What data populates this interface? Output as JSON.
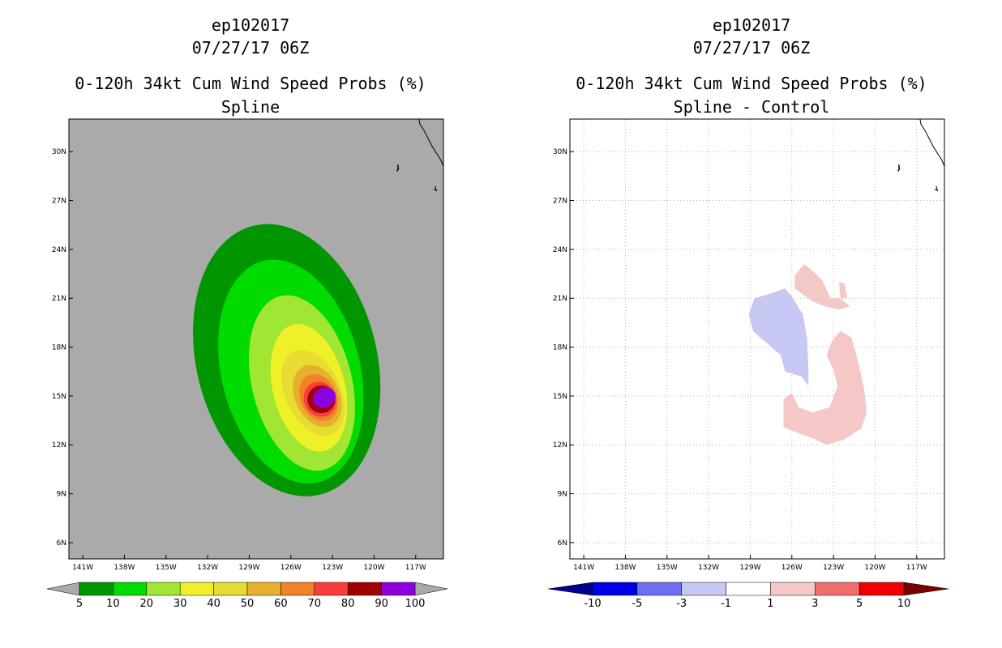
{
  "chart_data": [
    {
      "type": "heatmap",
      "storm_id": "ep102017",
      "datetime": "07/27/17 06Z",
      "title": "0-120h 34kt Cum Wind Speed Probs (%)",
      "subtitle": "Spline",
      "x_ticks": [
        "141W",
        "138W",
        "135W",
        "132W",
        "129W",
        "126W",
        "123W",
        "120W",
        "117W"
      ],
      "y_ticks": [
        "30N",
        "27N",
        "24N",
        "21N",
        "18N",
        "15N",
        "12N",
        "9N",
        "6N"
      ],
      "xlim": [
        -142,
        -115
      ],
      "ylim": [
        5,
        32
      ],
      "background_color": "#aaaaaa",
      "colorbar": {
        "labels": [
          "5",
          "10",
          "20",
          "30",
          "40",
          "50",
          "60",
          "70",
          "80",
          "90",
          "100"
        ],
        "colors": [
          "#009600",
          "#00dc00",
          "#a0e632",
          "#f0f028",
          "#e6dc32",
          "#e6af2d",
          "#f08228",
          "#fa3c3c",
          "#a00000",
          "#8c00dc"
        ],
        "extend_colors": [
          "#aaaaaa",
          "#aaaaaa"
        ]
      },
      "contours": [
        {
          "level": 5,
          "center": [
            -126.3,
            17.2
          ],
          "radius_deg": [
            6.5,
            8.5
          ],
          "color": "#009600"
        },
        {
          "level": 10,
          "center": [
            -126.0,
            16.5
          ],
          "radius_deg": [
            5.0,
            7.0
          ],
          "color": "#00dc00"
        },
        {
          "level": 20,
          "center": [
            -125.2,
            15.8
          ],
          "radius_deg": [
            3.6,
            5.5
          ],
          "color": "#a0e632"
        },
        {
          "level": 30,
          "center": [
            -124.7,
            15.5
          ],
          "radius_deg": [
            2.6,
            4.0
          ],
          "color": "#f0f028"
        },
        {
          "level": 40,
          "center": [
            -124.4,
            15.2
          ],
          "radius_deg": [
            2.0,
            2.8
          ],
          "color": "#e6dc32"
        },
        {
          "level": 50,
          "center": [
            -124.1,
            15.0
          ],
          "radius_deg": [
            1.6,
            2.0
          ],
          "color": "#e6af2d"
        },
        {
          "level": 60,
          "center": [
            -124.0,
            14.9
          ],
          "radius_deg": [
            1.3,
            1.5
          ],
          "color": "#f08228"
        },
        {
          "level": 70,
          "center": [
            -123.9,
            14.8
          ],
          "radius_deg": [
            1.15,
            1.1
          ],
          "color": "#fa3c3c"
        },
        {
          "level": 80,
          "center": [
            -123.8,
            14.8
          ],
          "radius_deg": [
            1.0,
            0.85
          ],
          "color": "#a00000"
        },
        {
          "level": 90,
          "center": [
            -123.6,
            14.9
          ],
          "radius_deg": [
            0.85,
            0.6
          ],
          "color": "#8c00dc"
        }
      ]
    },
    {
      "type": "heatmap",
      "storm_id": "ep102017",
      "datetime": "07/27/17 06Z",
      "title": "0-120h 34kt Cum Wind Speed Probs (%)",
      "subtitle": "Spline - Control",
      "x_ticks": [
        "141W",
        "138W",
        "135W",
        "132W",
        "129W",
        "126W",
        "123W",
        "120W",
        "117W"
      ],
      "y_ticks": [
        "30N",
        "27N",
        "24N",
        "21N",
        "18N",
        "15N",
        "12N",
        "9N",
        "6N"
      ],
      "xlim": [
        -142,
        -115
      ],
      "ylim": [
        5,
        32
      ],
      "background_color": "#ffffff",
      "grid": true,
      "colorbar": {
        "labels": [
          "-10",
          "-5",
          "-3",
          "-1",
          "1",
          "3",
          "5",
          "10"
        ],
        "colors": [
          "#0000e6",
          "#6e6ef0",
          "#c8c8f5",
          "#ffffff",
          "#f5c8c8",
          "#f06e6e",
          "#f00000"
        ],
        "extend_colors": [
          "#00008c",
          "#780000"
        ]
      },
      "regions": [
        {
          "level_range": [
            -3,
            -1
          ],
          "color": "#c8c8f5",
          "points": [
            [
              -129.1,
              20.0
            ],
            [
              -128.7,
              21.0
            ],
            [
              -127.5,
              21.3
            ],
            [
              -126.5,
              21.6
            ],
            [
              -126.0,
              21.1
            ],
            [
              -125.2,
              20.0
            ],
            [
              -124.9,
              18.5
            ],
            [
              -124.8,
              16.5
            ],
            [
              -124.8,
              15.6
            ],
            [
              -125.3,
              16.2
            ],
            [
              -126.5,
              16.5
            ],
            [
              -126.8,
              17.5
            ],
            [
              -127.6,
              18.1
            ],
            [
              -128.3,
              18.6
            ],
            [
              -128.8,
              19.0
            ]
          ]
        },
        {
          "level_range": [
            1,
            3
          ],
          "color": "#f5c8c8",
          "points": [
            [
              -123.5,
              17.5
            ],
            [
              -123.1,
              18.4
            ],
            [
              -122.5,
              19.0
            ],
            [
              -121.7,
              18.6
            ],
            [
              -121.2,
              17.0
            ],
            [
              -120.8,
              15.5
            ],
            [
              -120.6,
              14.0
            ],
            [
              -121.0,
              13.0
            ],
            [
              -122.3,
              12.3
            ],
            [
              -123.5,
              12.0
            ],
            [
              -124.5,
              12.4
            ],
            [
              -125.5,
              12.7
            ],
            [
              -126.6,
              13.1
            ],
            [
              -126.6,
              14.8
            ],
            [
              -126.0,
              15.2
            ],
            [
              -125.5,
              14.3
            ],
            [
              -124.5,
              14.0
            ],
            [
              -123.3,
              14.3
            ],
            [
              -122.7,
              15.6
            ],
            [
              -123.0,
              16.6
            ]
          ]
        },
        {
          "level_range": [
            1,
            3
          ],
          "color": "#f5c8c8",
          "points": [
            [
              -125.8,
              21.6
            ],
            [
              -125.8,
              22.4
            ],
            [
              -125.1,
              23.1
            ],
            [
              -124.4,
              22.6
            ],
            [
              -123.8,
              22.1
            ],
            [
              -123.2,
              21.0
            ],
            [
              -122.0,
              21.0
            ],
            [
              -122.2,
              21.9
            ],
            [
              -122.6,
              22.0
            ],
            [
              -122.5,
              21.0
            ],
            [
              -121.8,
              20.5
            ],
            [
              -122.6,
              20.3
            ],
            [
              -123.6,
              20.5
            ],
            [
              -124.5,
              20.8
            ]
          ]
        }
      ]
    }
  ]
}
